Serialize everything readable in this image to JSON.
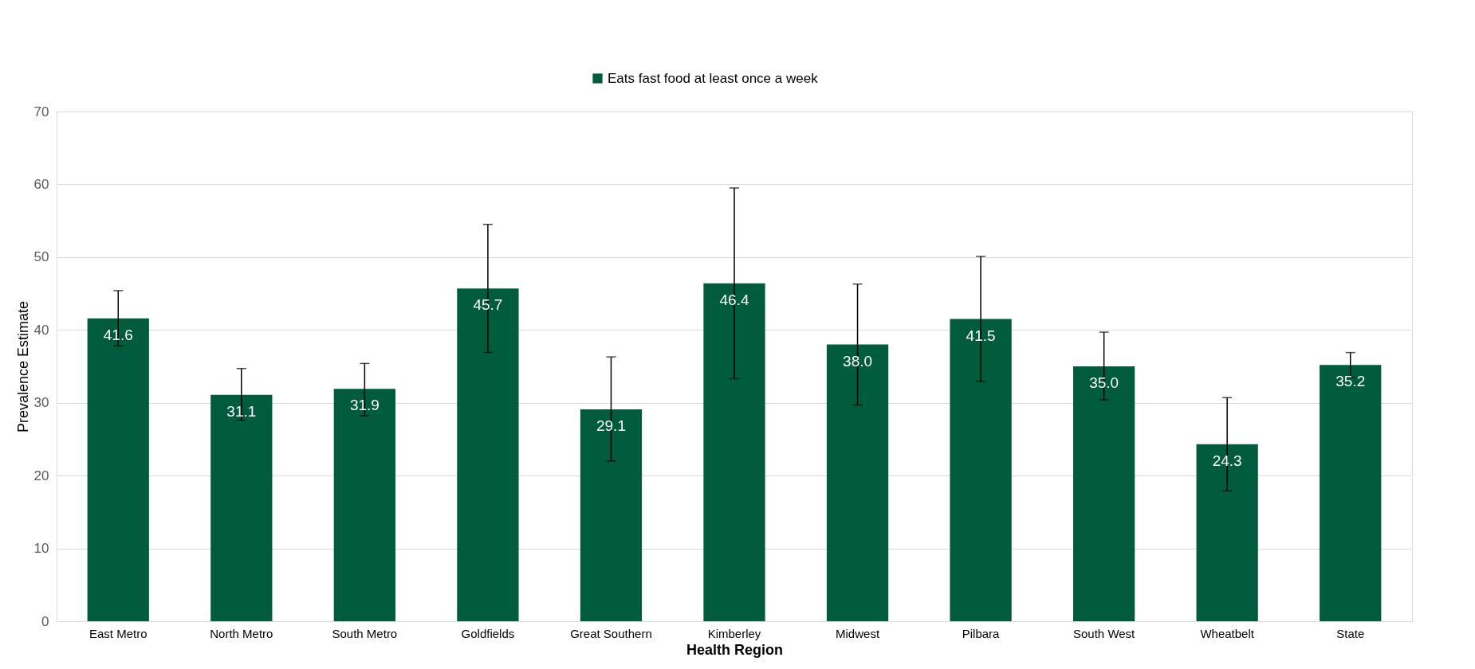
{
  "chart_data": {
    "type": "bar",
    "xlabel": "Health Region",
    "ylabel": "Prevalence Estimate",
    "categories": [
      "East Metro",
      "North Metro",
      "South Metro",
      "Goldfields",
      "Great Southern",
      "Kimberley",
      "Midwest",
      "Pilbara",
      "South West",
      "Wheatbelt",
      "State"
    ],
    "series": [
      {
        "name": "Eats fast food at least once a week",
        "color": "#005c3c",
        "values": [
          41.6,
          31.1,
          31.9,
          45.7,
          29.1,
          46.4,
          38.0,
          41.5,
          35.0,
          24.3,
          35.2
        ],
        "errors": [
          [
            37.8,
            45.4
          ],
          [
            27.6,
            34.7
          ],
          [
            28.2,
            35.4
          ],
          [
            36.9,
            54.5
          ],
          [
            22.0,
            36.3
          ],
          [
            33.3,
            59.5
          ],
          [
            29.7,
            46.3
          ],
          [
            32.9,
            50.1
          ],
          [
            30.4,
            39.7
          ],
          [
            17.9,
            30.7
          ],
          [
            33.5,
            36.9
          ]
        ]
      }
    ],
    "value_labels": [
      "41.6",
      "31.1",
      "31.9",
      "45.7",
      "29.1",
      "46.4",
      "38.0",
      "41.5",
      "35.0",
      "24.3",
      "35.2"
    ],
    "ylim": [
      0,
      70
    ],
    "yticks": [
      0,
      10,
      20,
      30,
      40,
      50,
      60,
      70
    ],
    "grid": "y",
    "legend": "top"
  }
}
